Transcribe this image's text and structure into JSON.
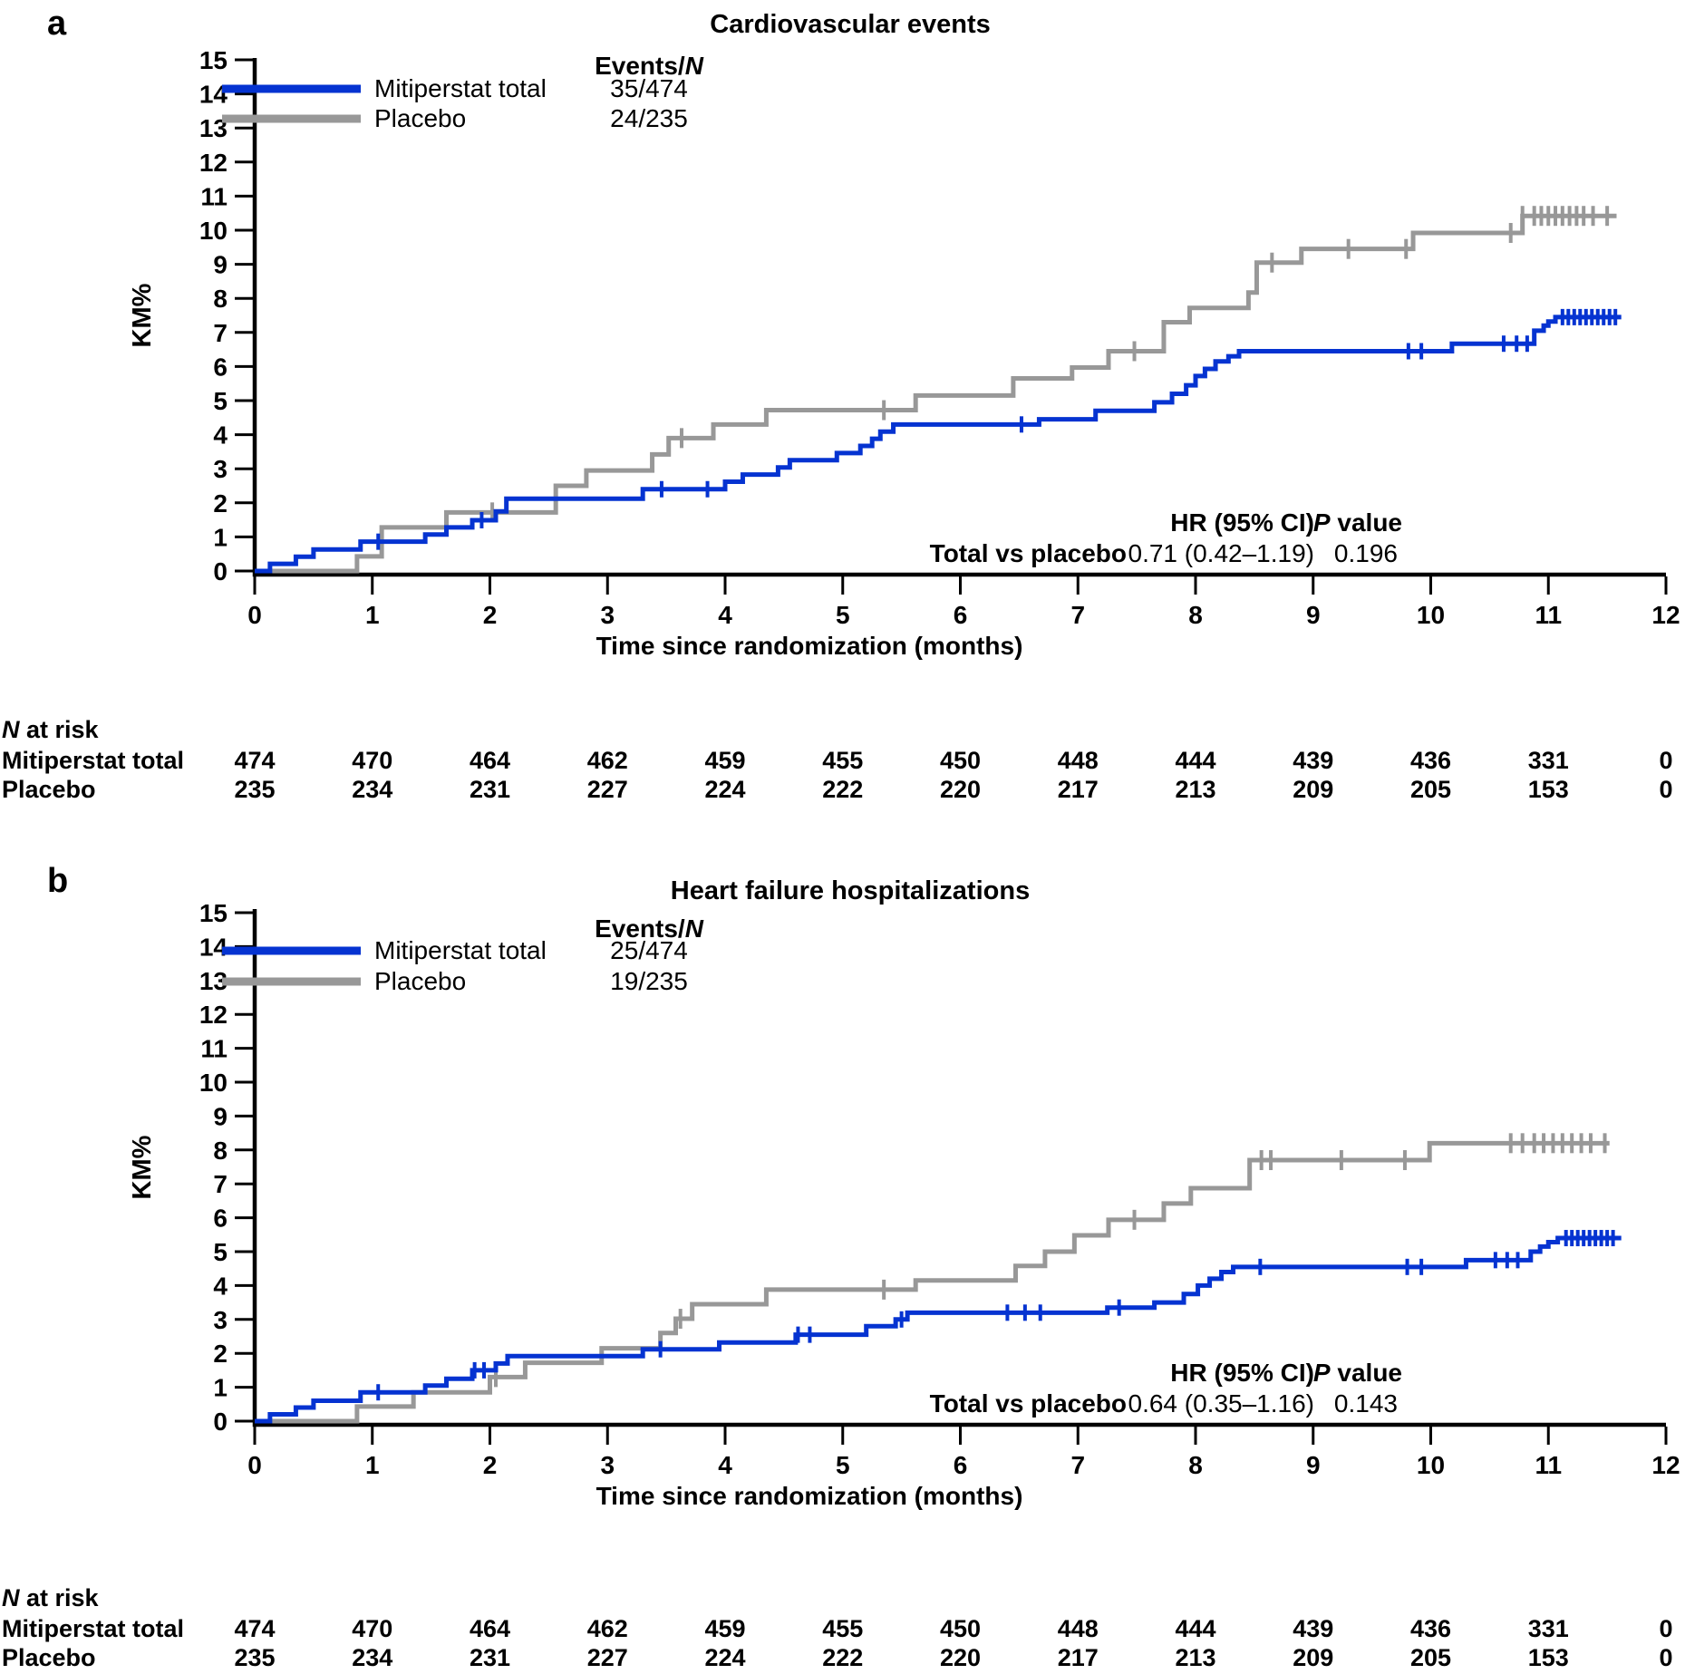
{
  "chart_data": [
    {
      "type": "line",
      "subtype": "kaplan-meier-step",
      "panel_label": "a",
      "title": "Cardiovascular events",
      "xlabel": "Time since randomization (months)",
      "ylabel": "KM%",
      "xlim": [
        0,
        12
      ],
      "ylim": [
        0,
        15
      ],
      "xticks": [
        0,
        1,
        2,
        3,
        4,
        5,
        6,
        7,
        8,
        9,
        10,
        11,
        12
      ],
      "yticks": [
        0,
        1,
        2,
        3,
        4,
        5,
        6,
        7,
        8,
        9,
        10,
        11,
        12,
        13,
        14,
        15
      ],
      "legend_header": {
        "prefix": "Events/",
        "italic": "N"
      },
      "series": [
        {
          "name": "Mitiperstat total",
          "events_n": "35/474",
          "color": "#0533d1",
          "end_x": 11.62,
          "steps": [
            [
              0.13,
              0.21
            ],
            [
              0.35,
              0.42
            ],
            [
              0.5,
              0.63
            ],
            [
              0.9,
              0.86
            ],
            [
              1.45,
              1.07
            ],
            [
              1.63,
              1.28
            ],
            [
              1.85,
              1.49
            ],
            [
              2.05,
              1.75
            ],
            [
              2.14,
              2.12
            ],
            [
              3.3,
              2.4
            ],
            [
              4.0,
              2.62
            ],
            [
              4.15,
              2.83
            ],
            [
              4.45,
              3.04
            ],
            [
              4.55,
              3.25
            ],
            [
              4.95,
              3.46
            ],
            [
              5.15,
              3.67
            ],
            [
              5.25,
              3.88
            ],
            [
              5.32,
              4.09
            ],
            [
              5.43,
              4.3
            ],
            [
              6.67,
              4.45
            ],
            [
              7.15,
              4.7
            ],
            [
              7.65,
              4.95
            ],
            [
              7.8,
              5.2
            ],
            [
              7.92,
              5.45
            ],
            [
              8.0,
              5.72
            ],
            [
              8.08,
              5.93
            ],
            [
              8.17,
              6.15
            ],
            [
              8.28,
              6.3
            ],
            [
              8.37,
              6.45
            ],
            [
              10.18,
              6.67
            ],
            [
              10.88,
              7.05
            ],
            [
              10.96,
              7.2
            ],
            [
              11.0,
              7.32
            ],
            [
              11.06,
              7.45
            ]
          ],
          "censor_x": [
            1.05,
            1.93,
            3.46,
            3.85,
            6.52,
            9.81,
            9.92,
            10.62,
            10.73,
            10.82,
            11.12,
            11.17,
            11.22,
            11.27,
            11.32,
            11.37,
            11.42,
            11.47,
            11.52,
            11.57
          ]
        },
        {
          "name": "Placebo",
          "events_n": "24/235",
          "color": "#989898",
          "end_x": 11.58,
          "steps": [
            [
              0.87,
              0.43
            ],
            [
              1.08,
              1.28
            ],
            [
              1.63,
              1.72
            ],
            [
              2.56,
              2.5
            ],
            [
              2.82,
              2.95
            ],
            [
              3.38,
              3.42
            ],
            [
              3.52,
              3.9
            ],
            [
              3.9,
              4.3
            ],
            [
              4.35,
              4.72
            ],
            [
              5.62,
              5.15
            ],
            [
              6.45,
              5.65
            ],
            [
              6.95,
              5.97
            ],
            [
              7.26,
              6.45
            ],
            [
              7.73,
              7.3
            ],
            [
              7.95,
              7.72
            ],
            [
              8.45,
              8.17
            ],
            [
              8.52,
              9.05
            ],
            [
              8.9,
              9.45
            ],
            [
              9.85,
              9.92
            ],
            [
              10.78,
              10.42
            ]
          ],
          "censor_x": [
            2.02,
            3.63,
            5.35,
            7.48,
            8.65,
            9.3,
            9.79,
            10.68,
            10.78,
            10.88,
            10.94,
            11.0,
            11.06,
            11.12,
            11.18,
            11.24,
            11.3,
            11.38,
            11.5
          ]
        }
      ],
      "annotation": {
        "hr_header": "HR (95% CI)",
        "p_header_italic": "P",
        "p_header_rest": " value",
        "row_label": "Total vs placebo",
        "hr_value": "0.71 (0.42–1.19)",
        "p_value": "0.196"
      },
      "risk_table": {
        "title_italic": "N",
        "title_rest": " at risk",
        "months": [
          0,
          1,
          2,
          3,
          4,
          5,
          6,
          7,
          8,
          9,
          10,
          11,
          12
        ],
        "rows": [
          {
            "label": "Mitiperstat total",
            "color": "#0533d1",
            "values": [
              "474",
              "470",
              "464",
              "462",
              "459",
              "455",
              "450",
              "448",
              "444",
              "439",
              "436",
              "331",
              "0"
            ]
          },
          {
            "label": "Placebo",
            "color": "#989898",
            "values": [
              "235",
              "234",
              "231",
              "227",
              "224",
              "222",
              "220",
              "217",
              "213",
              "209",
              "205",
              "153",
              "0"
            ]
          }
        ]
      }
    },
    {
      "type": "line",
      "subtype": "kaplan-meier-step",
      "panel_label": "b",
      "title": "Heart failure hospitalizations",
      "xlabel": "Time since randomization (months)",
      "ylabel": "KM%",
      "xlim": [
        0,
        12
      ],
      "ylim": [
        0,
        15
      ],
      "xticks": [
        0,
        1,
        2,
        3,
        4,
        5,
        6,
        7,
        8,
        9,
        10,
        11,
        12
      ],
      "yticks": [
        0,
        1,
        2,
        3,
        4,
        5,
        6,
        7,
        8,
        9,
        10,
        11,
        12,
        13,
        14,
        15
      ],
      "legend_header": {
        "prefix": "Events/",
        "italic": "N"
      },
      "series": [
        {
          "name": "Mitiperstat total",
          "events_n": "25/474",
          "color": "#0533d1",
          "end_x": 11.62,
          "steps": [
            [
              0.13,
              0.2
            ],
            [
              0.35,
              0.4
            ],
            [
              0.5,
              0.6
            ],
            [
              0.9,
              0.85
            ],
            [
              1.45,
              1.05
            ],
            [
              1.63,
              1.25
            ],
            [
              1.85,
              1.5
            ],
            [
              2.05,
              1.7
            ],
            [
              2.15,
              1.92
            ],
            [
              3.3,
              2.12
            ],
            [
              3.95,
              2.32
            ],
            [
              4.6,
              2.55
            ],
            [
              5.2,
              2.8
            ],
            [
              5.45,
              3.0
            ],
            [
              5.55,
              3.2
            ],
            [
              7.25,
              3.35
            ],
            [
              7.65,
              3.5
            ],
            [
              7.9,
              3.75
            ],
            [
              8.02,
              4.0
            ],
            [
              8.12,
              4.2
            ],
            [
              8.22,
              4.4
            ],
            [
              8.32,
              4.55
            ],
            [
              10.3,
              4.75
            ],
            [
              10.85,
              5.0
            ],
            [
              10.93,
              5.15
            ],
            [
              11.0,
              5.28
            ],
            [
              11.08,
              5.4
            ]
          ],
          "censor_x": [
            1.05,
            1.87,
            1.95,
            3.45,
            4.62,
            4.72,
            5.5,
            6.4,
            6.55,
            6.68,
            7.35,
            8.55,
            9.8,
            9.92,
            10.55,
            10.65,
            10.74,
            11.15,
            11.2,
            11.25,
            11.3,
            11.35,
            11.4,
            11.45,
            11.5,
            11.55
          ]
        },
        {
          "name": "Placebo",
          "events_n": "19/235",
          "color": "#989898",
          "end_x": 11.52,
          "steps": [
            [
              0.87,
              0.43
            ],
            [
              1.35,
              0.85
            ],
            [
              2.0,
              1.3
            ],
            [
              2.3,
              1.72
            ],
            [
              2.95,
              2.15
            ],
            [
              3.45,
              2.6
            ],
            [
              3.58,
              3.02
            ],
            [
              3.72,
              3.45
            ],
            [
              4.35,
              3.88
            ],
            [
              5.62,
              4.15
            ],
            [
              6.47,
              4.58
            ],
            [
              6.72,
              5.0
            ],
            [
              6.97,
              5.48
            ],
            [
              7.26,
              5.94
            ],
            [
              7.73,
              6.42
            ],
            [
              7.96,
              6.87
            ],
            [
              8.46,
              7.7
            ],
            [
              9.99,
              8.2
            ]
          ],
          "censor_x": [
            2.05,
            3.62,
            5.35,
            7.48,
            8.56,
            8.64,
            9.24,
            9.78,
            10.68,
            10.78,
            10.88,
            10.96,
            11.04,
            11.12,
            11.2,
            11.28,
            11.36,
            11.48
          ]
        }
      ],
      "annotation": {
        "hr_header": "HR (95% CI)",
        "p_header_italic": "P",
        "p_header_rest": " value",
        "row_label": "Total vs placebo",
        "hr_value": "0.64 (0.35–1.16)",
        "p_value": "0.143"
      },
      "risk_table": {
        "title_italic": "N",
        "title_rest": " at risk",
        "months": [
          0,
          1,
          2,
          3,
          4,
          5,
          6,
          7,
          8,
          9,
          10,
          11,
          12
        ],
        "rows": [
          {
            "label": "Mitiperstat total",
            "color": "#0533d1",
            "values": [
              "474",
              "470",
              "464",
              "462",
              "459",
              "455",
              "450",
              "448",
              "444",
              "439",
              "436",
              "331",
              "0"
            ]
          },
          {
            "label": "Placebo",
            "color": "#989898",
            "values": [
              "235",
              "234",
              "231",
              "227",
              "224",
              "222",
              "220",
              "217",
              "213",
              "209",
              "205",
              "153",
              "0"
            ]
          }
        ]
      }
    }
  ]
}
